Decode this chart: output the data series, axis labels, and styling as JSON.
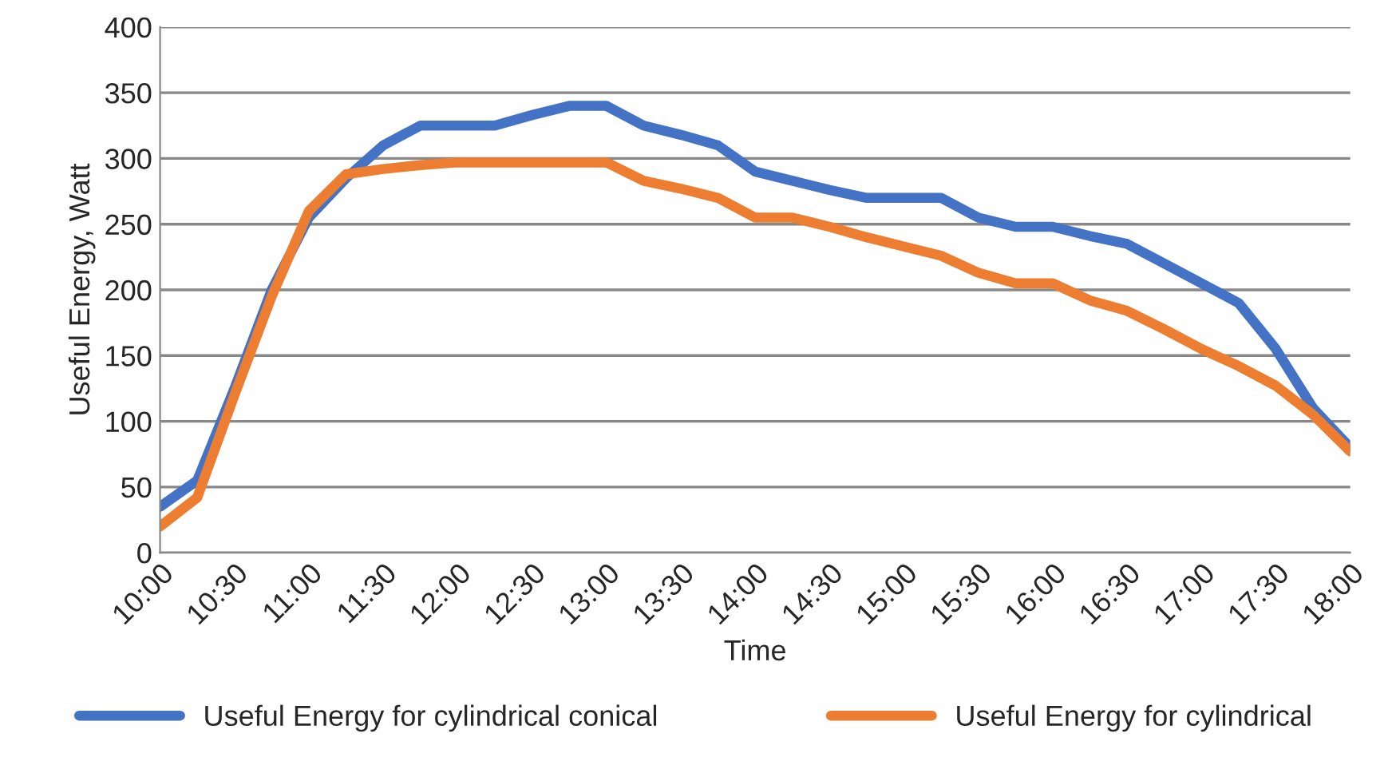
{
  "chart_data": {
    "type": "line",
    "xlabel": "Time",
    "ylabel": "Useful Energy, Watt",
    "categories": [
      "10:00",
      null,
      "10:30",
      null,
      "11:00",
      null,
      "11:30",
      null,
      "12:00",
      null,
      "12:30",
      null,
      "13:00",
      null,
      "13:30",
      null,
      "14:00",
      null,
      "14:30",
      null,
      "15:00",
      null,
      "15:30",
      null,
      "16:00",
      null,
      "16:30",
      null,
      "17:00",
      null,
      "17:30",
      null,
      "18:00"
    ],
    "series": [
      {
        "name": "Useful Energy for cylindrical conical",
        "color": "#4472c4",
        "values": [
          35,
          55,
          125,
          200,
          255,
          285,
          310,
          325,
          325,
          325,
          333,
          340,
          340,
          325,
          318,
          310,
          290,
          283,
          276,
          270,
          270,
          270,
          255,
          248,
          248,
          241,
          235,
          220,
          205,
          190,
          155,
          110,
          80
        ]
      },
      {
        "name": "Useful Energy for cylindrical",
        "color": "#ed7d31",
        "values": [
          20,
          42,
          120,
          195,
          260,
          288,
          292,
          295,
          297,
          297,
          297,
          297,
          297,
          283,
          277,
          270,
          255,
          255,
          248,
          240,
          233,
          226,
          213,
          205,
          205,
          192,
          184,
          170,
          155,
          142,
          127,
          105,
          77
        ]
      }
    ],
    "ylim": [
      0,
      400
    ],
    "yticks": [
      0,
      50,
      100,
      150,
      200,
      250,
      300,
      350,
      400
    ],
    "grid": "y",
    "legend": "bottom",
    "marker": "none",
    "line_style": "solid"
  }
}
